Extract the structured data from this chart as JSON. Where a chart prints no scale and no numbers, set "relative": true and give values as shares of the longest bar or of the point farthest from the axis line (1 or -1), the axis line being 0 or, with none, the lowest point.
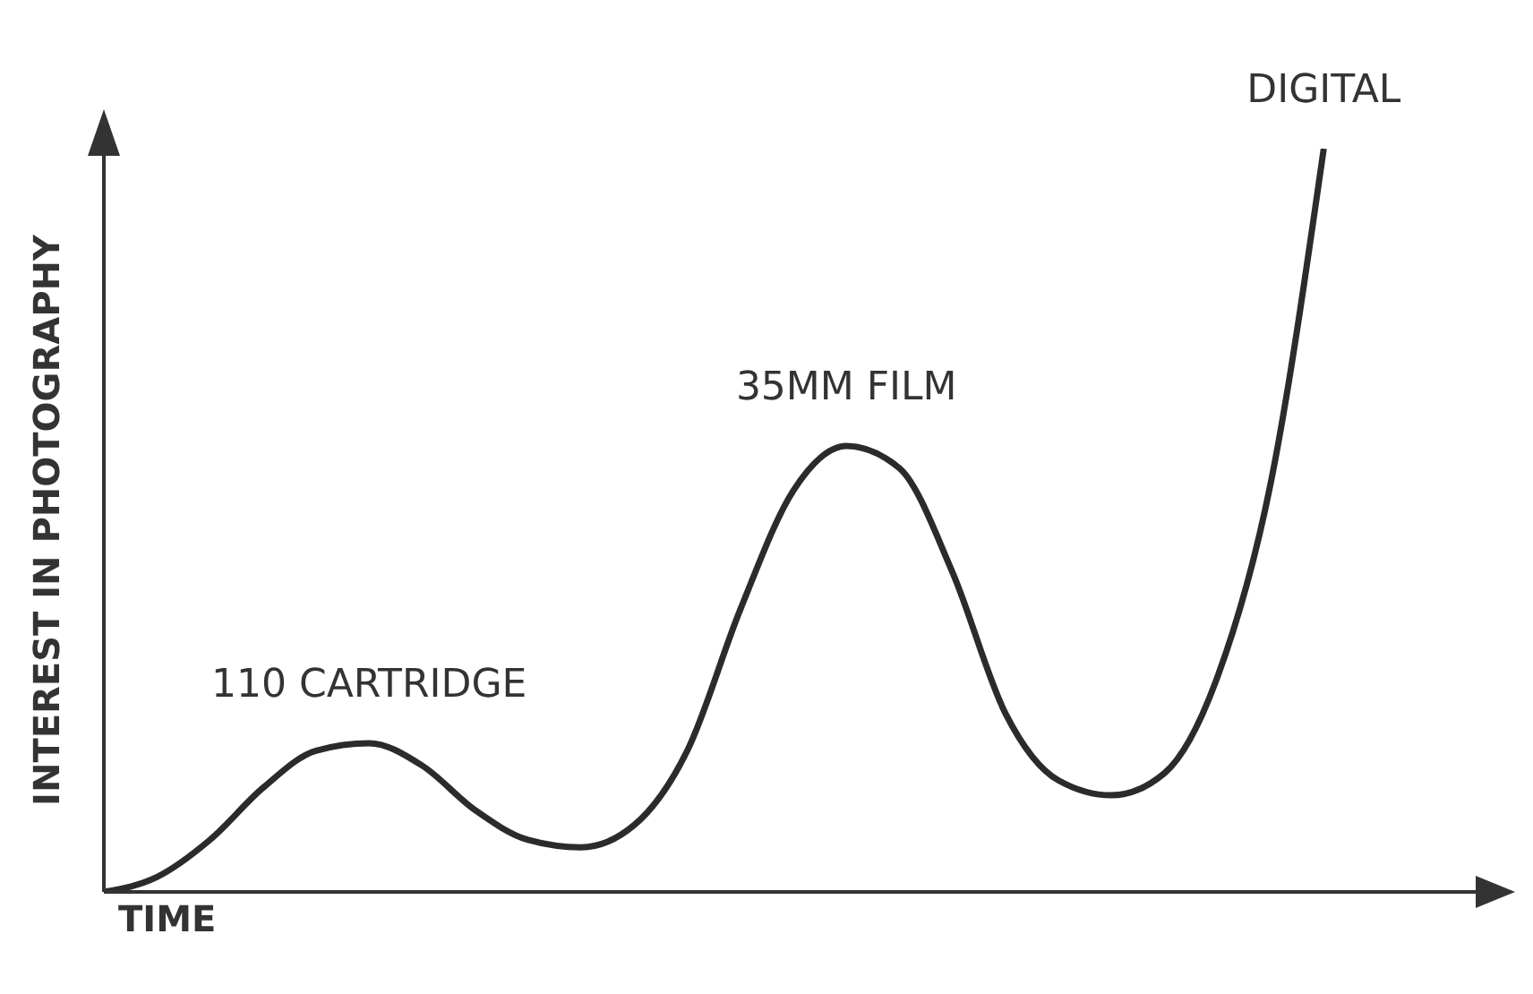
{
  "chart_data": {
    "type": "line",
    "relative": true,
    "xlabel": "TIME",
    "ylabel": "INTEREST IN PHOTOGRAPHY",
    "categories": [
      null,
      null,
      null,
      null,
      null,
      null,
      null,
      null,
      null,
      null,
      null,
      null,
      null,
      null,
      null,
      null,
      null,
      null,
      null,
      null,
      null,
      null,
      null,
      null,
      null,
      null,
      null
    ],
    "series": [
      {
        "color": "#2b2b2b",
        "values": [
          0,
          0.02,
          0.07,
          0.14,
          0.19,
          0.2,
          0.17,
          0.11,
          0.07,
          0.06,
          0.09,
          0.19,
          0.38,
          0.54,
          0.6,
          0.57,
          0.43,
          0.24,
          0.15,
          0.13,
          0.16,
          0.29,
          0.55,
          1,
          null,
          null,
          null
        ]
      }
    ],
    "annotations": [
      "110 CARTRIDGE",
      "35MM FILM",
      "DIGITAL"
    ],
    "marker": "none",
    "line_style": "solid",
    "grid": false
  }
}
